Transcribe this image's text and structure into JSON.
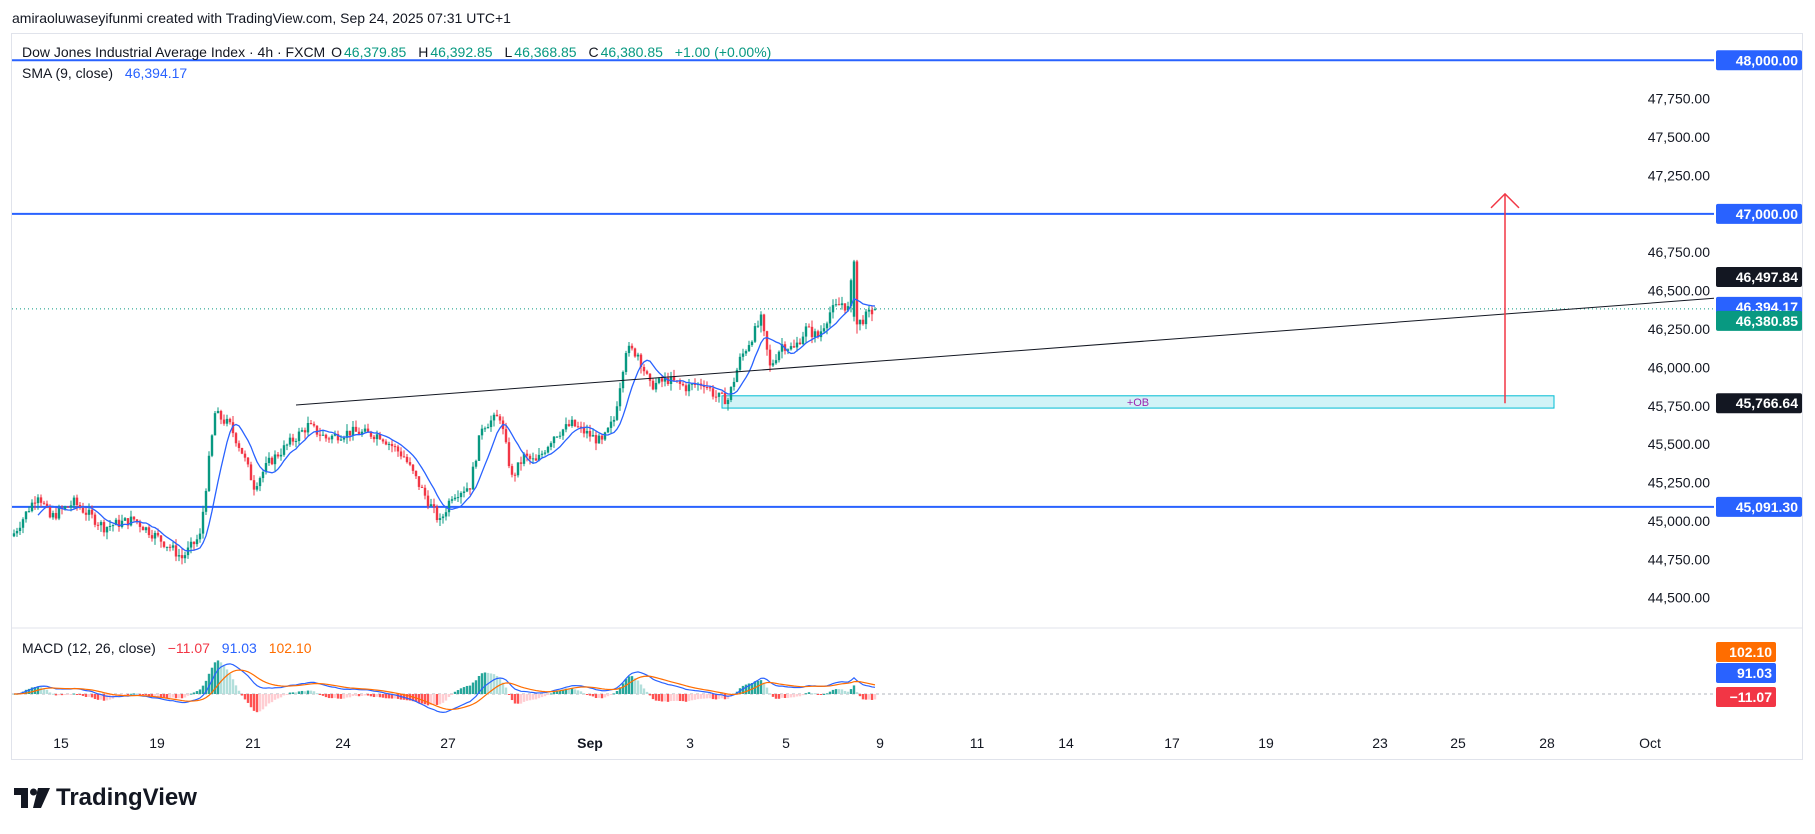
{
  "credit": "amiraoluwaseyifunmi created with TradingView.com, Sep 24, 2025 07:31 UTC+1",
  "legend": {
    "symbol": "Dow Jones Industrial Average Index · 4h · FXCM",
    "o_label": "O",
    "o_value": "46,379.85",
    "h_label": "H",
    "h_value": "46,392.85",
    "l_label": "L",
    "l_value": "46,368.85",
    "c_label": "C",
    "c_value": "46,380.85",
    "change": "+1.00 (+0.00%)",
    "sma_label": "SMA (9, close)",
    "sma_value": "46,394.17",
    "macd_label": "MACD (12, 26, close)",
    "macd_hist": "−11.07",
    "macd_line": "91.03",
    "macd_signal": "102.10"
  },
  "colors": {
    "up": "#089981",
    "down": "#f23645",
    "sma": "#2962ff",
    "macd": "#2962ff",
    "signal": "#ff6d00",
    "level": "#2962ff",
    "arrow": "#f23645"
  },
  "annotations": {
    "ob_label": "+OB"
  },
  "logo_text": "TradingView",
  "chart_data": {
    "type": "candlestick",
    "price_axis": {
      "ticks": [
        44500,
        44750,
        45000,
        45250,
        45500,
        45750,
        46000,
        46250,
        46500,
        46750,
        47000,
        47250,
        47500,
        47750,
        48000
      ],
      "tick_labels": [
        "44,500.00",
        "44,750.00",
        "45,000.00",
        "45,250.00",
        "45,500.00",
        "45,750.00",
        "46,000.00",
        "46,250.00",
        "46,500.00",
        "46,750.00",
        "47,000.00",
        "47,250.00",
        "47,500.00",
        "47,750.00",
        "48,000.00"
      ],
      "range": [
        44420,
        48080
      ]
    },
    "time_axis": {
      "labels": [
        "15",
        "19",
        "21",
        "24",
        "27",
        "Sep",
        "3",
        "5",
        "9",
        "11",
        "14",
        "17",
        "19",
        "23",
        "25",
        "28",
        "Oct"
      ],
      "bold": [
        false,
        false,
        false,
        false,
        false,
        true,
        false,
        false,
        false,
        false,
        false,
        false,
        false,
        false,
        false,
        false,
        false
      ]
    },
    "horizontal_levels": [
      {
        "price": 48000,
        "label": "48,000.00"
      },
      {
        "price": 47000,
        "label": "47,000.00"
      },
      {
        "price": 45091.3,
        "label": "45,091.30"
      }
    ],
    "price_badges": [
      {
        "price": 46497.84,
        "label": "46,497.84",
        "role": "high"
      },
      {
        "price": 46394.17,
        "label": "46,394.17",
        "role": "sma"
      },
      {
        "price": 46380.85,
        "label": "46,380.85",
        "role": "last"
      },
      {
        "price": 45766.64,
        "label": "45,766.64",
        "role": "target"
      }
    ],
    "trendline": {
      "from": [
        0,
        45755
      ],
      "to": [
        999,
        46450
      ]
    },
    "order_block": {
      "start_index": 236,
      "low": 45735,
      "high": 45815,
      "label": "+OB"
    },
    "projection_arrow": {
      "from_price": 45766.64,
      "to_price": 47130
    },
    "ohlc_anchor_closes": [
      {
        "i": 0,
        "c": 44920
      },
      {
        "i": 8,
        "c": 45180
      },
      {
        "i": 12,
        "c": 45020
      },
      {
        "i": 20,
        "c": 45120
      },
      {
        "i": 30,
        "c": 44960
      },
      {
        "i": 40,
        "c": 45010
      },
      {
        "i": 52,
        "c": 44830
      },
      {
        "i": 56,
        "c": 44760
      },
      {
        "i": 62,
        "c": 44900
      },
      {
        "i": 65,
        "c": 45390
      },
      {
        "i": 67,
        "c": 45700
      },
      {
        "i": 72,
        "c": 45620
      },
      {
        "i": 76,
        "c": 45450
      },
      {
        "i": 80,
        "c": 45230
      },
      {
        "i": 85,
        "c": 45380
      },
      {
        "i": 92,
        "c": 45510
      },
      {
        "i": 98,
        "c": 45620
      },
      {
        "i": 104,
        "c": 45540
      },
      {
        "i": 112,
        "c": 45580
      },
      {
        "i": 122,
        "c": 45560
      },
      {
        "i": 130,
        "c": 45420
      },
      {
        "i": 136,
        "c": 45200
      },
      {
        "i": 142,
        "c": 44990
      },
      {
        "i": 146,
        "c": 45170
      },
      {
        "i": 152,
        "c": 45230
      },
      {
        "i": 156,
        "c": 45620
      },
      {
        "i": 162,
        "c": 45680
      },
      {
        "i": 166,
        "c": 45280
      },
      {
        "i": 170,
        "c": 45420
      },
      {
        "i": 174,
        "c": 45380
      },
      {
        "i": 180,
        "c": 45560
      },
      {
        "i": 186,
        "c": 45630
      },
      {
        "i": 190,
        "c": 45580
      },
      {
        "i": 196,
        "c": 45510
      },
      {
        "i": 200,
        "c": 45660
      },
      {
        "i": 204,
        "c": 46120
      },
      {
        "i": 208,
        "c": 46090
      },
      {
        "i": 212,
        "c": 45880
      },
      {
        "i": 218,
        "c": 45920
      },
      {
        "i": 224,
        "c": 45870
      },
      {
        "i": 230,
        "c": 45900
      },
      {
        "i": 234,
        "c": 45810
      },
      {
        "i": 238,
        "c": 45790
      },
      {
        "i": 242,
        "c": 46050
      },
      {
        "i": 246,
        "c": 46200
      },
      {
        "i": 249,
        "c": 46310
      },
      {
        "i": 252,
        "c": 46000
      },
      {
        "i": 256,
        "c": 46150
      },
      {
        "i": 260,
        "c": 46120
      },
      {
        "i": 264,
        "c": 46250
      },
      {
        "i": 268,
        "c": 46200
      },
      {
        "i": 272,
        "c": 46360
      },
      {
        "i": 276,
        "c": 46420
      },
      {
        "i": 278,
        "c": 46380
      },
      {
        "i": 280,
        "c": 46690
      },
      {
        "i": 281,
        "c": 46280
      },
      {
        "i": 284,
        "c": 46330
      },
      {
        "i": 287,
        "c": 46380
      }
    ],
    "macd": {
      "line": 91.03,
      "signal": 102.1,
      "histogram": -11.07,
      "badges": [
        {
          "value": 102.1,
          "label": "102.10",
          "role": "signal"
        },
        {
          "value": 91.03,
          "label": "91.03",
          "role": "macd"
        },
        {
          "value": -11.07,
          "label": "−11.07",
          "role": "hist"
        }
      ]
    }
  }
}
